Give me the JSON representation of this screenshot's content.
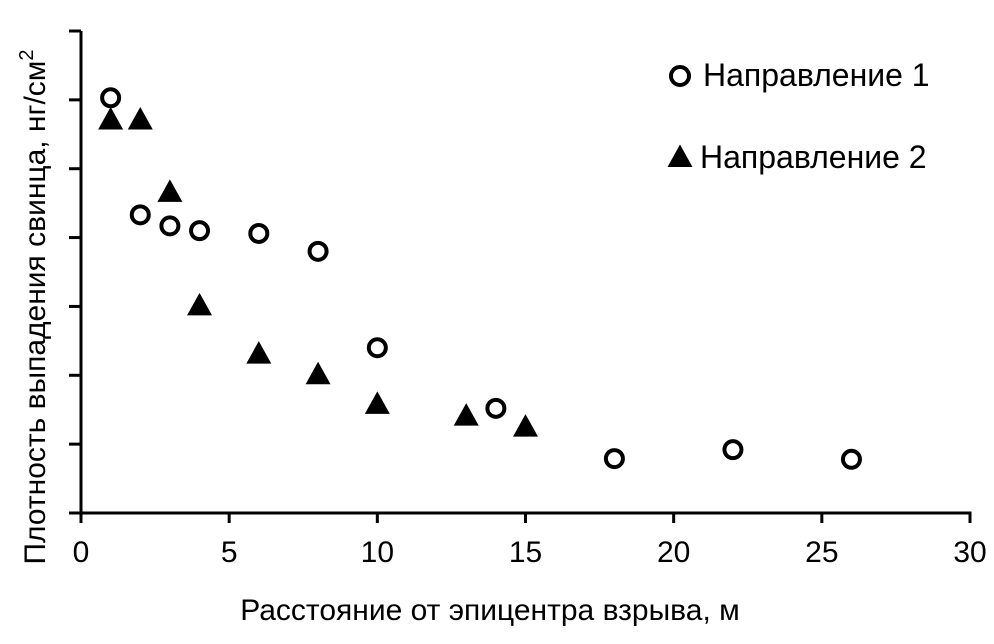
{
  "chart_data": {
    "type": "scatter",
    "xlabel": "Расстояние от эпицентра взрыва, м",
    "ylabel": "Плотность выпадения свинца, нг/см",
    "ylabel_sup": "2",
    "xlim": [
      0,
      30
    ],
    "ylim": [
      0,
      7
    ],
    "x_ticks": [
      0,
      5,
      10,
      15,
      20,
      25,
      30
    ],
    "y_tick_count": 7,
    "y_tick_labels_shown": false,
    "grid": false,
    "legend_position": "top-right",
    "series": [
      {
        "name": "Направление 1",
        "marker": "open-circle",
        "color": "#000000",
        "points": [
          {
            "x": 1,
            "y": 6.03
          },
          {
            "x": 2,
            "y": 4.33
          },
          {
            "x": 3,
            "y": 4.17
          },
          {
            "x": 4,
            "y": 4.1
          },
          {
            "x": 6,
            "y": 4.06
          },
          {
            "x": 8,
            "y": 3.8
          },
          {
            "x": 10,
            "y": 2.4
          },
          {
            "x": 14,
            "y": 1.52
          },
          {
            "x": 18,
            "y": 0.79
          },
          {
            "x": 22,
            "y": 0.92
          },
          {
            "x": 26,
            "y": 0.78
          }
        ]
      },
      {
        "name": "Направление 2",
        "marker": "filled-triangle",
        "color": "#000000",
        "points": [
          {
            "x": 1,
            "y": 5.7
          },
          {
            "x": 2,
            "y": 5.7
          },
          {
            "x": 3,
            "y": 4.65
          },
          {
            "x": 4,
            "y": 3.0
          },
          {
            "x": 6,
            "y": 2.3
          },
          {
            "x": 8,
            "y": 2.0
          },
          {
            "x": 10,
            "y": 1.57
          },
          {
            "x": 13,
            "y": 1.4
          },
          {
            "x": 15,
            "y": 1.24
          }
        ]
      }
    ]
  }
}
